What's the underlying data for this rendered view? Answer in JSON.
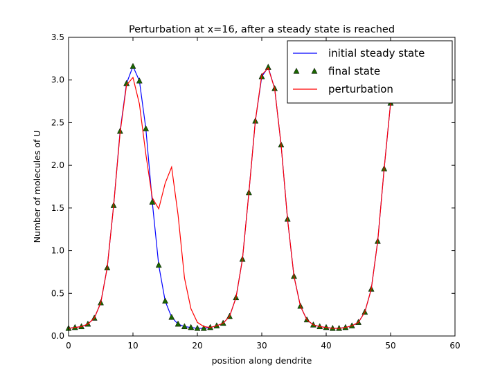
{
  "chart_data": {
    "type": "line",
    "title": "Perturbation at x=16, after a steady state is reached",
    "xlabel": "position along dendrite",
    "ylabel": "Number of molecules of U",
    "xlim": [
      0,
      60
    ],
    "ylim": [
      0.0,
      3.5
    ],
    "xticks": [
      "0",
      "10",
      "20",
      "30",
      "40",
      "50",
      "60"
    ],
    "yticks": [
      "0.0",
      "0.5",
      "1.0",
      "1.5",
      "2.0",
      "2.5",
      "3.0",
      "3.5"
    ],
    "grid": false,
    "legend_position": "top-right",
    "series": [
      {
        "name": "initial steady state",
        "style": "line",
        "color": "#0000ff",
        "x": [
          0,
          1,
          2,
          3,
          4,
          5,
          6,
          7,
          8,
          9,
          10,
          11,
          12,
          13,
          14,
          15,
          16,
          17,
          18,
          19,
          20,
          21,
          22,
          23,
          24,
          25,
          26,
          27,
          28,
          29,
          30,
          31,
          32,
          33,
          34,
          35,
          36,
          37,
          38,
          39,
          40,
          41,
          42,
          43,
          44,
          45,
          46,
          47,
          48,
          49,
          50
        ],
        "y": [
          0.09,
          0.1,
          0.11,
          0.14,
          0.21,
          0.39,
          0.8,
          1.53,
          2.4,
          2.96,
          3.16,
          2.99,
          2.43,
          1.57,
          0.83,
          0.41,
          0.22,
          0.14,
          0.11,
          0.1,
          0.09,
          0.09,
          0.1,
          0.12,
          0.15,
          0.23,
          0.45,
          0.9,
          1.68,
          2.52,
          3.04,
          3.15,
          2.9,
          2.24,
          1.37,
          0.7,
          0.35,
          0.19,
          0.13,
          0.11,
          0.1,
          0.09,
          0.09,
          0.1,
          0.12,
          0.16,
          0.28,
          0.55,
          1.11,
          1.96,
          2.73
        ]
      },
      {
        "name": "final state",
        "style": "triangle-markers",
        "color": "#1a6600",
        "x": [
          0,
          1,
          2,
          3,
          4,
          5,
          6,
          7,
          8,
          9,
          10,
          11,
          12,
          13,
          14,
          15,
          16,
          17,
          18,
          19,
          20,
          21,
          22,
          23,
          24,
          25,
          26,
          27,
          28,
          29,
          30,
          31,
          32,
          33,
          34,
          35,
          36,
          37,
          38,
          39,
          40,
          41,
          42,
          43,
          44,
          45,
          46,
          47,
          48,
          49,
          50
        ],
        "y": [
          0.09,
          0.1,
          0.11,
          0.14,
          0.21,
          0.39,
          0.8,
          1.53,
          2.4,
          2.96,
          3.16,
          2.99,
          2.43,
          1.57,
          0.83,
          0.41,
          0.22,
          0.14,
          0.11,
          0.1,
          0.09,
          0.09,
          0.1,
          0.12,
          0.15,
          0.23,
          0.45,
          0.9,
          1.68,
          2.52,
          3.04,
          3.15,
          2.9,
          2.24,
          1.37,
          0.7,
          0.35,
          0.19,
          0.13,
          0.11,
          0.1,
          0.09,
          0.09,
          0.1,
          0.12,
          0.16,
          0.28,
          0.55,
          1.11,
          1.96,
          2.73
        ]
      },
      {
        "name": "perturbation",
        "style": "line",
        "color": "#ff0000",
        "x": [
          0,
          1,
          2,
          3,
          4,
          5,
          6,
          7,
          8,
          9,
          10,
          11,
          12,
          13,
          14,
          15,
          16,
          17,
          18,
          19,
          20,
          21,
          22,
          23,
          24,
          25,
          26,
          27,
          28,
          29,
          30,
          31,
          32,
          33,
          34,
          35,
          36,
          37,
          38,
          39,
          40,
          41,
          42,
          43,
          44,
          45,
          46,
          47,
          48,
          49,
          50
        ],
        "y": [
          0.09,
          0.1,
          0.11,
          0.14,
          0.21,
          0.39,
          0.8,
          1.53,
          2.38,
          2.94,
          3.03,
          2.72,
          2.13,
          1.62,
          1.49,
          1.79,
          1.98,
          1.42,
          0.68,
          0.32,
          0.16,
          0.11,
          0.1,
          0.12,
          0.15,
          0.23,
          0.45,
          0.9,
          1.68,
          2.52,
          3.06,
          3.14,
          2.9,
          2.24,
          1.37,
          0.7,
          0.35,
          0.19,
          0.13,
          0.11,
          0.1,
          0.09,
          0.09,
          0.1,
          0.12,
          0.16,
          0.28,
          0.55,
          1.11,
          1.96,
          2.73
        ]
      }
    ]
  }
}
